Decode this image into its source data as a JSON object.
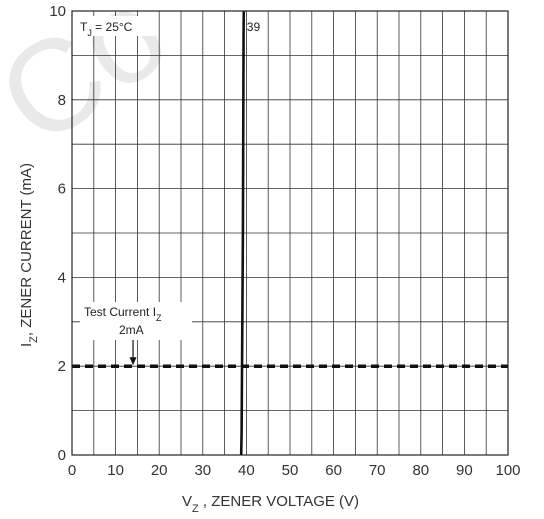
{
  "chart_data": {
    "type": "line",
    "xlabel_main": "V",
    "xlabel_sub": "Z",
    "xlabel_rest": " , ZENER VOLTAGE (V)",
    "ylabel_main": "I",
    "ylabel_sub": "Z",
    "ylabel_rest": ", ZENER CURRENT (mA)",
    "xlim": [
      0,
      100
    ],
    "ylim": [
      0,
      10
    ],
    "x_ticks": [
      "0",
      "10",
      "20",
      "30",
      "40",
      "50",
      "60",
      "70",
      "80",
      "90",
      "100"
    ],
    "y_ticks": [
      "0",
      "2",
      "4",
      "6",
      "8",
      "10"
    ],
    "x_minor_step": 5,
    "y_minor_step": 1,
    "grid": true,
    "series": [
      {
        "name": "39",
        "x": [
          38.8,
          38.9,
          39.0,
          39.2,
          39.3,
          39.35,
          39.4
        ],
        "y": [
          0,
          0.5,
          2,
          5,
          8,
          9.5,
          10
        ]
      }
    ],
    "test_current_line": {
      "y": 2,
      "style": "dashed"
    },
    "annotations": {
      "temperature_main": "T",
      "temperature_sub": "J",
      "temperature_rest": " = 25°C",
      "test_current_main": "Test Current I",
      "test_current_sub": "Z",
      "test_current_value": "2mA",
      "test_current_arrow_x": 14
    }
  },
  "watermark": "Co"
}
